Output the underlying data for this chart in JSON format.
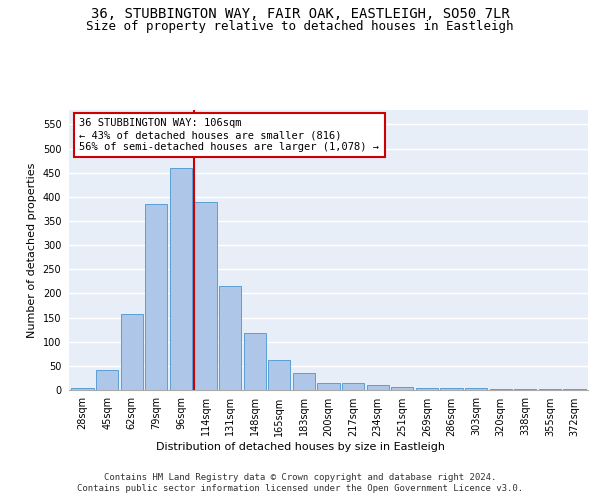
{
  "title_line1": "36, STUBBINGTON WAY, FAIR OAK, EASTLEIGH, SO50 7LR",
  "title_line2": "Size of property relative to detached houses in Eastleigh",
  "xlabel": "Distribution of detached houses by size in Eastleigh",
  "ylabel": "Number of detached properties",
  "categories": [
    "28sqm",
    "45sqm",
    "62sqm",
    "79sqm",
    "96sqm",
    "114sqm",
    "131sqm",
    "148sqm",
    "165sqm",
    "183sqm",
    "200sqm",
    "217sqm",
    "234sqm",
    "251sqm",
    "269sqm",
    "286sqm",
    "303sqm",
    "320sqm",
    "338sqm",
    "355sqm",
    "372sqm"
  ],
  "bar_heights": [
    5,
    42,
    158,
    385,
    460,
    390,
    215,
    118,
    63,
    35,
    15,
    15,
    10,
    7,
    5,
    5,
    5,
    3,
    2,
    2,
    2
  ],
  "bar_color": "#aec6e8",
  "bar_edge_color": "#5a9fd4",
  "vline_index": 5,
  "vline_color": "#cc0000",
  "annotation_text": "36 STUBBINGTON WAY: 106sqm\n← 43% of detached houses are smaller (816)\n56% of semi-detached houses are larger (1,078) →",
  "annotation_box_color": "#ffffff",
  "annotation_border_color": "#cc0000",
  "ylim": [
    0,
    580
  ],
  "yticks": [
    0,
    50,
    100,
    150,
    200,
    250,
    300,
    350,
    400,
    450,
    500,
    550
  ],
  "footer_line1": "Contains HM Land Registry data © Crown copyright and database right 2024.",
  "footer_line2": "Contains public sector information licensed under the Open Government Licence v3.0.",
  "background_color": "#e8eef7",
  "grid_color": "#ffffff",
  "title_fontsize": 10,
  "subtitle_fontsize": 9,
  "axis_label_fontsize": 8,
  "tick_fontsize": 7,
  "annotation_fontsize": 7.5,
  "footer_fontsize": 6.5
}
